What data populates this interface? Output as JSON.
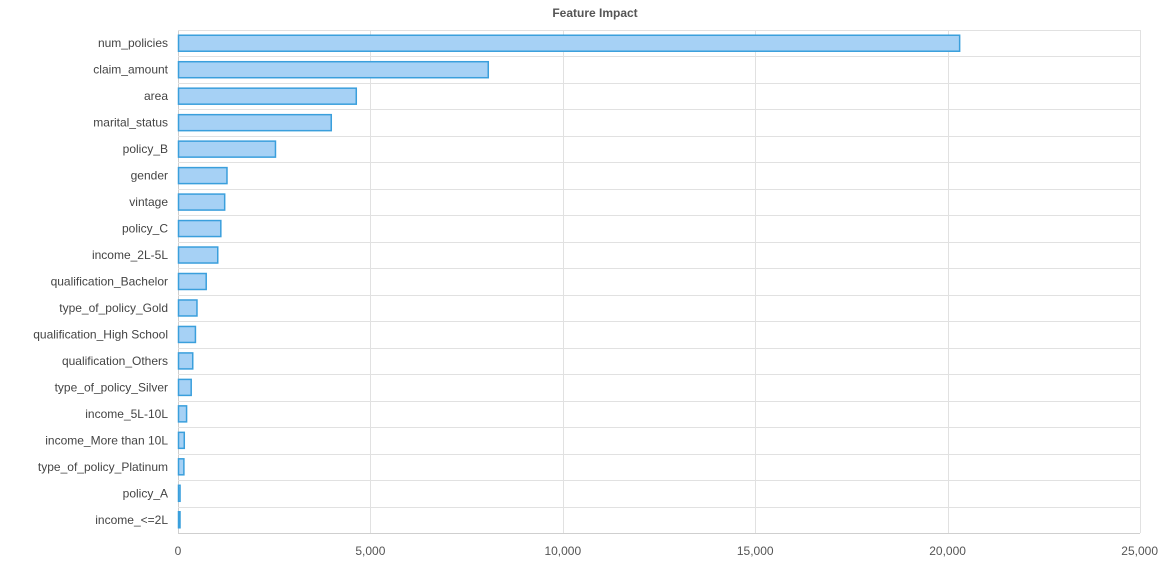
{
  "chart_data": {
    "type": "bar",
    "orientation": "horizontal",
    "title": "Feature Impact",
    "xlabel": "",
    "ylabel": "",
    "xlim": [
      0,
      25000
    ],
    "x_ticks": [
      0,
      5000,
      10000,
      15000,
      20000,
      25000
    ],
    "x_tick_labels": [
      "0",
      "5,000",
      "10,000",
      "15,000",
      "20,000",
      "25,000"
    ],
    "grid": true,
    "legend": "none",
    "categories": [
      "num_policies",
      "claim_amount",
      "area",
      "marital_status",
      "policy_B",
      "gender",
      "vintage",
      "policy_C",
      "income_2L-5L",
      "qualification_Bachelor",
      "type_of_policy_Gold",
      "qualification_High School",
      "qualification_Others",
      "type_of_policy_Silver",
      "income_5L-10L",
      "income_More than 10L",
      "type_of_policy_Platinum",
      "policy_A",
      "income_<=2L"
    ],
    "values": [
      20300,
      8050,
      4620,
      3970,
      2520,
      1260,
      1200,
      1100,
      1020,
      720,
      480,
      440,
      370,
      330,
      210,
      150,
      140,
      40,
      30
    ],
    "colors": {
      "bar_fill": "#a6d1f5",
      "bar_stroke": "#3a9fdc"
    }
  }
}
